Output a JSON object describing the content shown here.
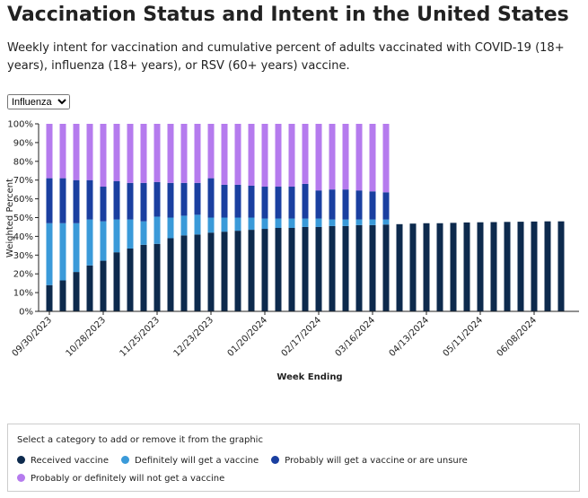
{
  "header": {
    "title": "Vaccination Status and Intent in the United States",
    "subtitle": "Weekly intent for vaccination and cumulative percent of adults vaccinated with COVID-19 (18+ years), influenza (18+ years), or RSV (60+ years) vaccine."
  },
  "dropdown": {
    "selected": "Influenza"
  },
  "legend_box": {
    "instruction": "Select a category to add or remove it from the graphic"
  },
  "chart_data": {
    "type": "stacked-bar",
    "x_label": "Week Ending",
    "y_label": "Weighted Percent",
    "categories": [
      "09/30/2023",
      null,
      null,
      null,
      "10/28/2023",
      null,
      null,
      null,
      "11/25/2023",
      null,
      null,
      null,
      "12/23/2023",
      null,
      null,
      null,
      "01/20/2024",
      null,
      null,
      null,
      "02/17/2024",
      null,
      null,
      null,
      "03/16/2024",
      null,
      null,
      null,
      "04/13/2024",
      null,
      null,
      null,
      "05/11/2024",
      null,
      null,
      null,
      "06/08/2024",
      null,
      null
    ],
    "ylim": [
      0,
      100
    ],
    "yticks": [
      {
        "value": 0,
        "label": "0%"
      },
      {
        "value": 10,
        "label": "10%"
      },
      {
        "value": 20,
        "label": "20%"
      },
      {
        "value": 30,
        "label": "30%"
      },
      {
        "value": 40,
        "label": "40%"
      },
      {
        "value": 50,
        "label": "50%"
      },
      {
        "value": 60,
        "label": "60%"
      },
      {
        "value": 70,
        "label": "70%"
      },
      {
        "value": 80,
        "label": "80%"
      },
      {
        "value": 90,
        "label": "90%"
      },
      {
        "value": 100,
        "label": "100%"
      }
    ],
    "series": [
      {
        "name": "Received vaccine",
        "color": "#0d2a4d",
        "values": [
          14,
          16.5,
          21,
          24.5,
          27,
          31.5,
          33.5,
          35.5,
          36,
          39,
          40.5,
          41,
          42,
          42.5,
          43,
          43.5,
          44,
          44.5,
          44.5,
          45,
          45,
          45.5,
          45.5,
          46,
          46,
          46.3,
          46.5,
          46.8,
          47,
          47,
          47.2,
          47.4,
          47.5,
          47.6,
          47.7,
          47.8,
          47.9,
          48,
          48
        ]
      },
      {
        "name": "Definitely will get a vaccine",
        "color": "#3a9ad9",
        "values": [
          33,
          30.5,
          26,
          24.5,
          21,
          17.5,
          15.5,
          12.5,
          14.5,
          11,
          10.5,
          10.5,
          8,
          7.5,
          7,
          6.5,
          5.5,
          5,
          5,
          4.5,
          4.5,
          3.5,
          3.5,
          3,
          3,
          2.7,
          null,
          null,
          null,
          null,
          null,
          null,
          null,
          null,
          null,
          null,
          null,
          null,
          null
        ]
      },
      {
        "name": "Probably will get a vaccine or are unsure",
        "color": "#1a3fa0",
        "values": [
          24,
          24,
          23,
          21,
          18.5,
          20.5,
          19.5,
          20.5,
          18.5,
          18.5,
          17.5,
          17,
          21,
          17.5,
          17.5,
          17,
          17,
          17,
          17,
          18.5,
          15,
          16,
          16,
          15.5,
          15,
          14.5,
          null,
          null,
          null,
          null,
          null,
          null,
          null,
          null,
          null,
          null,
          null,
          null,
          null
        ]
      },
      {
        "name": "Probably or definitely will not get a vaccine",
        "color": "#b57bee",
        "values": [
          29,
          29,
          30,
          30,
          33.5,
          30.5,
          31.5,
          31.5,
          31,
          31.5,
          31.5,
          31.5,
          29,
          32.5,
          32.5,
          33,
          33.5,
          33.5,
          33.5,
          32,
          35.5,
          35,
          35,
          35.5,
          36,
          36.5,
          null,
          null,
          null,
          null,
          null,
          null,
          null,
          null,
          null,
          null,
          null,
          null,
          null
        ]
      }
    ]
  }
}
